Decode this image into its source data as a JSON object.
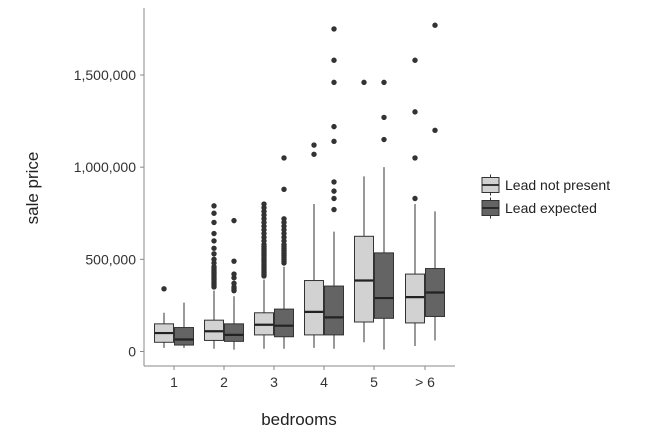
{
  "chart_data": {
    "type": "boxplot",
    "title": "",
    "xlabel": "bedrooms",
    "ylabel": "sale price",
    "categories": [
      "1",
      "2",
      "3",
      "4",
      "5",
      "> 6"
    ],
    "ylim": [
      -50000,
      1850000
    ],
    "yticks": [
      0,
      500000,
      1000000,
      1500000
    ],
    "ytick_labels": [
      "0",
      "500,000",
      "1,000,000",
      "1,500,000"
    ],
    "grid": false,
    "legend_position": "right",
    "series": [
      {
        "name": "Lead not present",
        "color": "#d2d2d2",
        "boxes": [
          {
            "whisker_low": 20000,
            "q1": 50000,
            "median": 100000,
            "q3": 150000,
            "whisker_high": 210000,
            "outliers": [
              340000
            ]
          },
          {
            "whisker_low": 15000,
            "q1": 60000,
            "median": 110000,
            "q3": 170000,
            "whisker_high": 330000,
            "outliers": [
              350000,
              360000,
              370000,
              380000,
              390000,
              400000,
              410000,
              420000,
              430000,
              440000,
              450000,
              460000,
              480000,
              500000,
              530000,
              560000,
              600000,
              640000,
              700000,
              750000,
              790000
            ]
          },
          {
            "whisker_low": 15000,
            "q1": 90000,
            "median": 145000,
            "q3": 210000,
            "whisker_high": 390000,
            "outliers": [
              410000,
              420000,
              430000,
              440000,
              450000,
              460000,
              470000,
              480000,
              490000,
              500000,
              510000,
              520000,
              530000,
              540000,
              550000,
              560000,
              570000,
              580000,
              600000,
              620000,
              640000,
              660000,
              680000,
              700000,
              720000,
              740000,
              760000,
              780000,
              800000
            ]
          },
          {
            "whisker_low": 20000,
            "q1": 90000,
            "median": 215000,
            "q3": 385000,
            "whisker_high": 800000,
            "outliers": [
              1070000,
              1120000
            ]
          },
          {
            "whisker_low": 50000,
            "q1": 160000,
            "median": 385000,
            "q3": 625000,
            "whisker_high": 950000,
            "outliers": [
              1460000
            ]
          },
          {
            "whisker_low": 30000,
            "q1": 155000,
            "median": 295000,
            "q3": 420000,
            "whisker_high": 800000,
            "outliers": [
              830000,
              1050000,
              1300000,
              1580000
            ]
          }
        ]
      },
      {
        "name": "Lead expected",
        "color": "#646464",
        "boxes": [
          {
            "whisker_low": 20000,
            "q1": 35000,
            "median": 65000,
            "q3": 130000,
            "whisker_high": 265000,
            "outliers": []
          },
          {
            "whisker_low": 10000,
            "q1": 55000,
            "median": 90000,
            "q3": 150000,
            "whisker_high": 300000,
            "outliers": [
              330000,
              340000,
              350000,
              370000,
              400000,
              420000,
              490000,
              710000
            ]
          },
          {
            "whisker_low": 15000,
            "q1": 80000,
            "median": 140000,
            "q3": 230000,
            "whisker_high": 460000,
            "outliers": [
              480000,
              490000,
              500000,
              510000,
              520000,
              530000,
              540000,
              550000,
              560000,
              570000,
              580000,
              600000,
              620000,
              640000,
              660000,
              680000,
              700000,
              720000,
              880000,
              1050000
            ]
          },
          {
            "whisker_low": 15000,
            "q1": 90000,
            "median": 185000,
            "q3": 355000,
            "whisker_high": 650000,
            "outliers": [
              770000,
              830000,
              870000,
              920000,
              1140000,
              1220000,
              1460000,
              1580000,
              1750000
            ]
          },
          {
            "whisker_low": 10000,
            "q1": 180000,
            "median": 290000,
            "q3": 535000,
            "whisker_high": 1000000,
            "outliers": [
              1150000,
              1270000,
              1460000
            ]
          },
          {
            "whisker_low": 60000,
            "q1": 190000,
            "median": 320000,
            "q3": 450000,
            "whisker_high": 760000,
            "outliers": [
              1200000,
              1770000
            ]
          }
        ]
      }
    ]
  }
}
